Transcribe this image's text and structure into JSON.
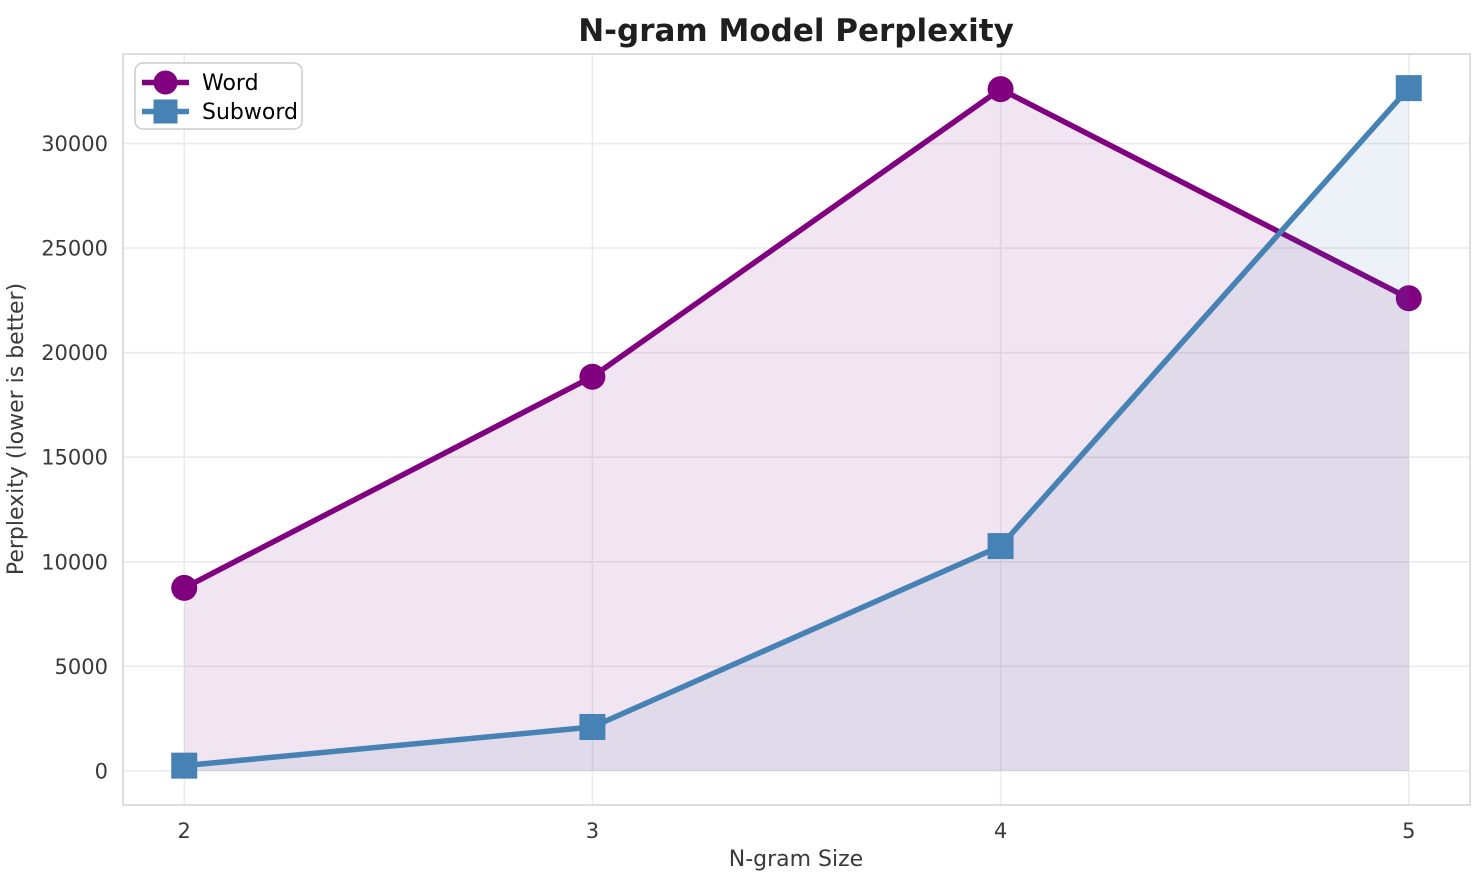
{
  "figure": {
    "background": "#ffffff"
  },
  "chart_data": {
    "type": "line",
    "title": "N-gram Model Perplexity",
    "xlabel": "N-gram Size",
    "ylabel": "Perplexity (lower is better)",
    "x": [
      2,
      3,
      4,
      5
    ],
    "xtick_labels": [
      "2",
      "3",
      "4",
      "5"
    ],
    "yticks": [
      0,
      5000,
      10000,
      15000,
      20000,
      25000,
      30000
    ],
    "ytick_labels": [
      "0",
      "5000",
      "10000",
      "15000",
      "20000",
      "25000",
      "30000"
    ],
    "xlim": [
      1.85,
      5.15
    ],
    "ylim": [
      -1632,
      34282
    ],
    "grid": true,
    "legend_position": "upper left",
    "series": [
      {
        "name": "Word",
        "color": "#800080",
        "marker": "circle",
        "line_width": 5.5,
        "fill_to_zero": true,
        "fill_alpha": 0.1,
        "values": [
          8750,
          18850,
          32600,
          22600
        ]
      },
      {
        "name": "Subword",
        "color": "#4682B4",
        "marker": "square",
        "line_width": 5.5,
        "fill_to_zero": true,
        "fill_alpha": 0.1,
        "values": [
          250,
          2100,
          10750,
          32650
        ]
      }
    ],
    "style": {
      "grid_color": "#ebebeb",
      "spine_color": "#d2d2d2",
      "title_color": "#1f1f1f",
      "tick_color": "#3a3a3a",
      "label_color": "#3a3a3a",
      "legend_border": "#cccccc",
      "legend_bg_alpha": 0.8
    }
  }
}
